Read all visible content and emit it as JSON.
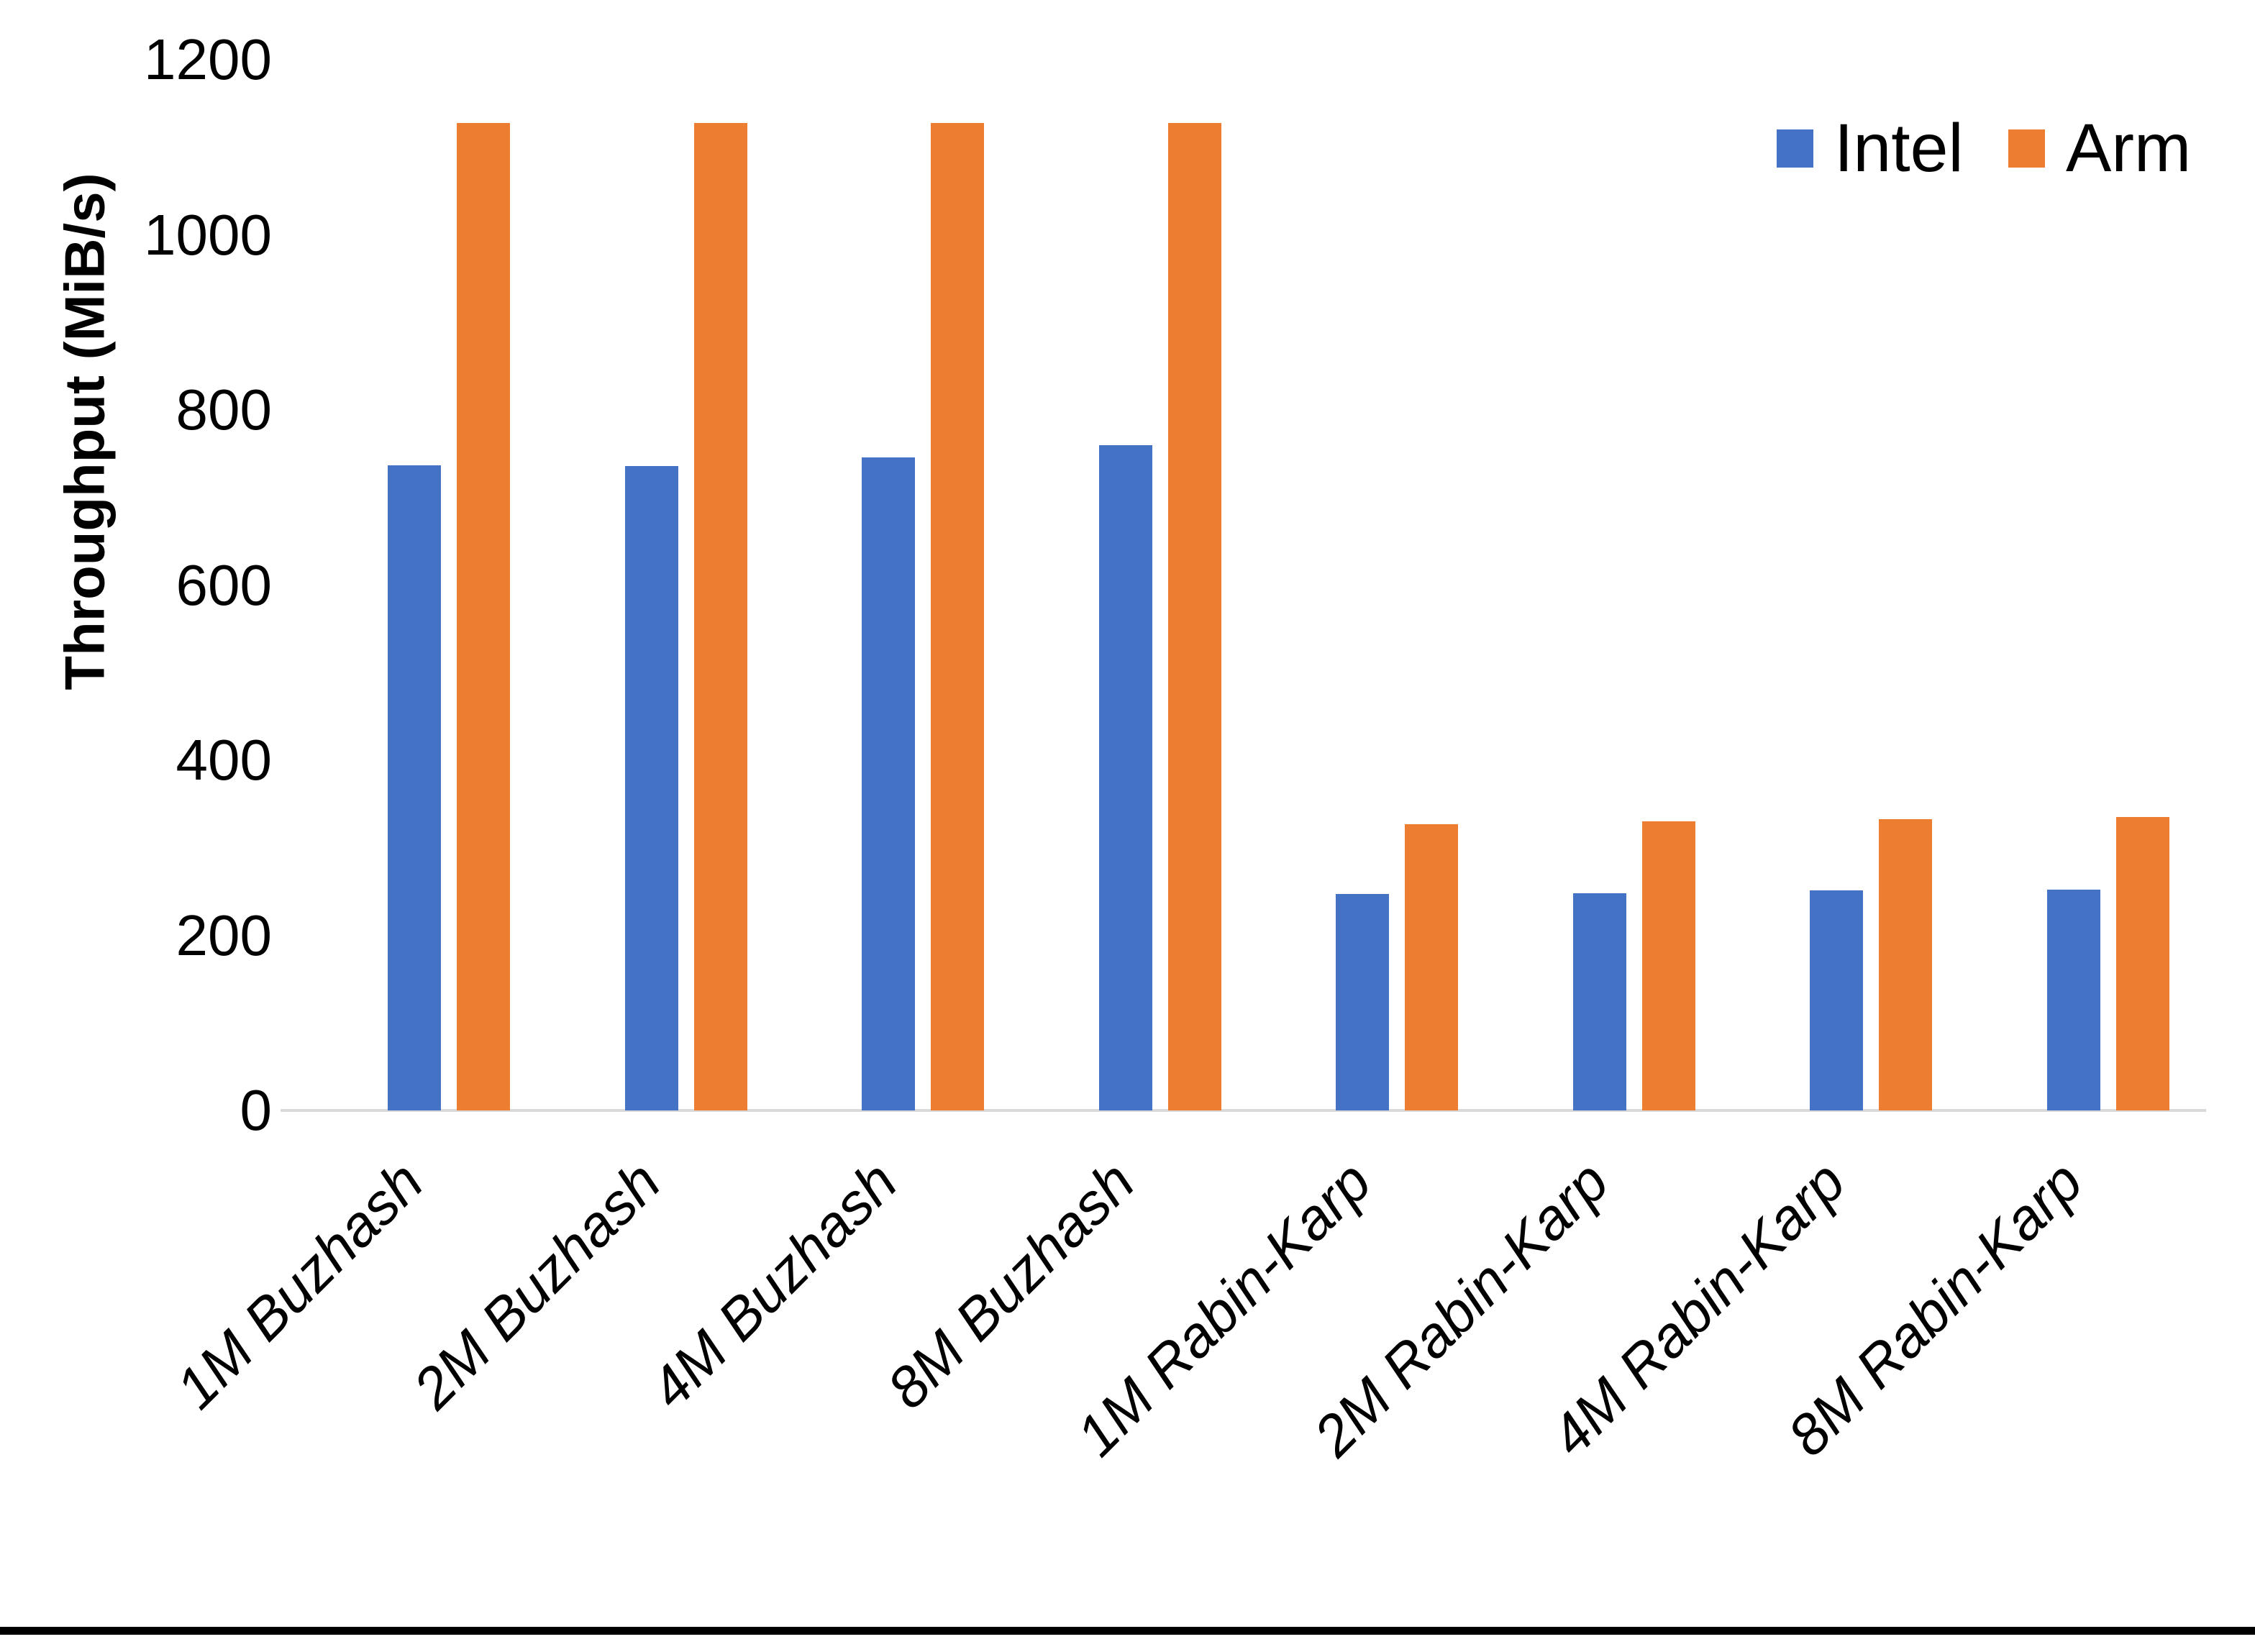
{
  "chart_data": {
    "type": "bar",
    "title": "",
    "xlabel": "",
    "ylabel": "Throughput (MiB/s)",
    "categories": [
      "1M Buzhash",
      "2M Buzhash",
      "4M Buzhash",
      "8M Buzhash",
      "1M Rabin-Karp",
      "2M Rabin-Karp",
      "4M Rabin-Karp",
      "8M Rabin-Karp"
    ],
    "series": [
      {
        "name": "Intel",
        "color": "#4472C4",
        "values": [
          737,
          736,
          746,
          760,
          247,
          248,
          251,
          252
        ]
      },
      {
        "name": "Arm",
        "color": "#ED7D31",
        "values": [
          1128,
          1128,
          1128,
          1128,
          327,
          330,
          333,
          335
        ]
      }
    ],
    "ylim": [
      0,
      1200
    ],
    "yticks": [
      0,
      200,
      400,
      600,
      800,
      1000,
      1200
    ],
    "grid": false,
    "legend_position": "top-right"
  },
  "colors": {
    "axis_line": "#D9D9D9",
    "text": "#000000",
    "background": "#FFFFFF",
    "bottom_bar": "#000000"
  }
}
